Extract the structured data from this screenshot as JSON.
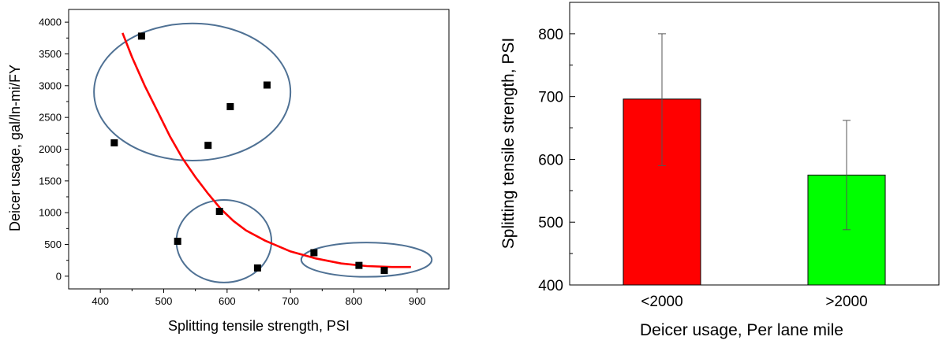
{
  "chart_data": [
    {
      "type": "scatter",
      "xlabel": "Splitting tensile strength, PSI",
      "ylabel": "Deicer usage, gal/ln-mi/FY",
      "xlim": [
        350,
        950
      ],
      "ylim": [
        -200,
        4200
      ],
      "x_ticks": [
        "400",
        "500",
        "600",
        "700",
        "800",
        "900"
      ],
      "y_ticks": [
        "0",
        "500",
        "1000",
        "1500",
        "2000",
        "2500",
        "3000",
        "3500",
        "4000"
      ],
      "grid": false,
      "points": [
        {
          "x": 465,
          "y": 3780
        },
        {
          "x": 663,
          "y": 3010
        },
        {
          "x": 605,
          "y": 2670
        },
        {
          "x": 422,
          "y": 2100
        },
        {
          "x": 570,
          "y": 2060
        },
        {
          "x": 588,
          "y": 1020
        },
        {
          "x": 522,
          "y": 550
        },
        {
          "x": 648,
          "y": 130
        },
        {
          "x": 737,
          "y": 370
        },
        {
          "x": 808,
          "y": 170
        },
        {
          "x": 848,
          "y": 90
        }
      ],
      "fit_curve": {
        "color": "#ff0000",
        "points": [
          {
            "x": 435,
            "y": 3830
          },
          {
            "x": 450,
            "y": 3450
          },
          {
            "x": 470,
            "y": 3000
          },
          {
            "x": 490,
            "y": 2600
          },
          {
            "x": 510,
            "y": 2200
          },
          {
            "x": 530,
            "y": 1850
          },
          {
            "x": 550,
            "y": 1560
          },
          {
            "x": 570,
            "y": 1300
          },
          {
            "x": 590,
            "y": 1060
          },
          {
            "x": 610,
            "y": 870
          },
          {
            "x": 630,
            "y": 720
          },
          {
            "x": 660,
            "y": 560
          },
          {
            "x": 700,
            "y": 390
          },
          {
            "x": 740,
            "y": 280
          },
          {
            "x": 780,
            "y": 200
          },
          {
            "x": 820,
            "y": 160
          },
          {
            "x": 860,
            "y": 145
          },
          {
            "x": 890,
            "y": 145
          }
        ]
      },
      "clusters": [
        {
          "cx": 545,
          "cy": 2900,
          "rx": 155,
          "ry": 1080
        },
        {
          "cx": 595,
          "cy": 550,
          "rx": 75,
          "ry": 650
        },
        {
          "cx": 820,
          "cy": 260,
          "rx": 103,
          "ry": 270
        }
      ],
      "marker_color": "#000000",
      "ellipse_color": "#4f7194"
    },
    {
      "type": "bar",
      "xlabel": "Deicer usage, Per lane mile",
      "ylabel": "Splitting tensile strength, PSI",
      "categories": [
        "<2000",
        ">2000"
      ],
      "values": [
        696,
        575
      ],
      "error_low": [
        590,
        488
      ],
      "error_high": [
        800,
        662
      ],
      "ylim": [
        400,
        850
      ],
      "y_ticks": [
        "400",
        "500",
        "600",
        "700",
        "800"
      ],
      "bar_colors": [
        "#ff0000",
        "#00ff00"
      ],
      "grid": false
    }
  ]
}
